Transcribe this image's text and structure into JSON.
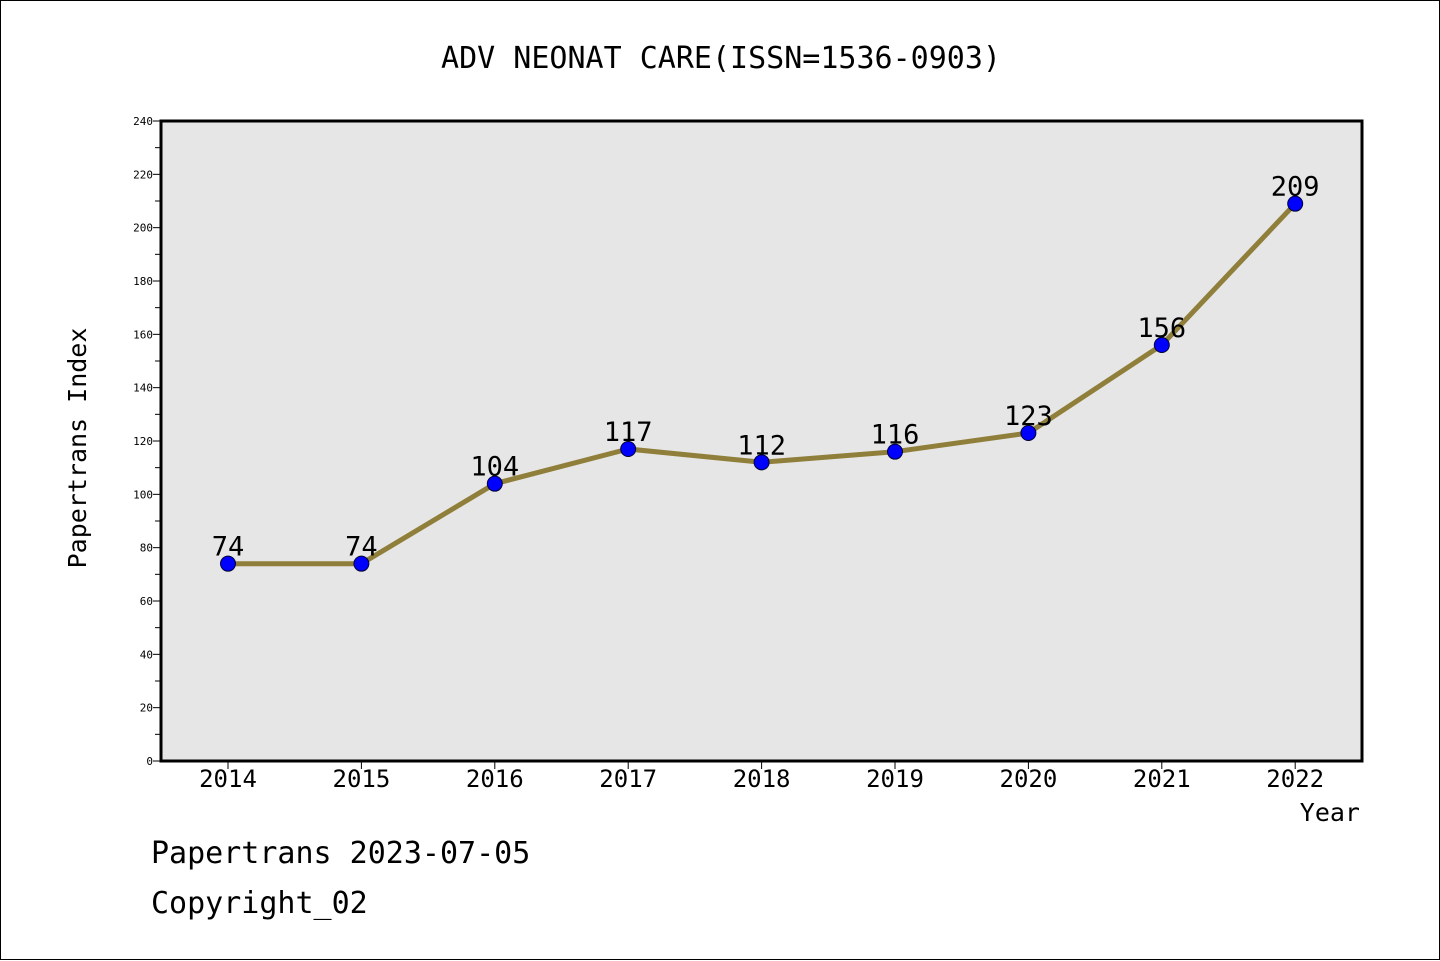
{
  "chart_data": {
    "type": "line",
    "title": "ADV NEONAT CARE(ISSN=1536-0903)",
    "xlabel": "Year",
    "ylabel": "Papertrans Index",
    "categories": [
      "2014",
      "2015",
      "2016",
      "2017",
      "2018",
      "2019",
      "2020",
      "2021",
      "2022"
    ],
    "series": [
      {
        "values": [
          74,
          74,
          104,
          117,
          112,
          116,
          123,
          156,
          209
        ]
      }
    ],
    "ylim": [
      0,
      240
    ],
    "yticks": [
      0,
      20,
      40,
      60,
      80,
      100,
      120,
      140,
      160,
      180,
      200,
      220,
      240
    ],
    "data_labels": true,
    "grid": false,
    "colors": {
      "line": "#8f7f3a",
      "marker": "#0000ff",
      "plot_background": "#e6e6e6"
    }
  },
  "footer": {
    "line1": "Papertrans 2023-07-05",
    "line2": "Copyright_02"
  }
}
